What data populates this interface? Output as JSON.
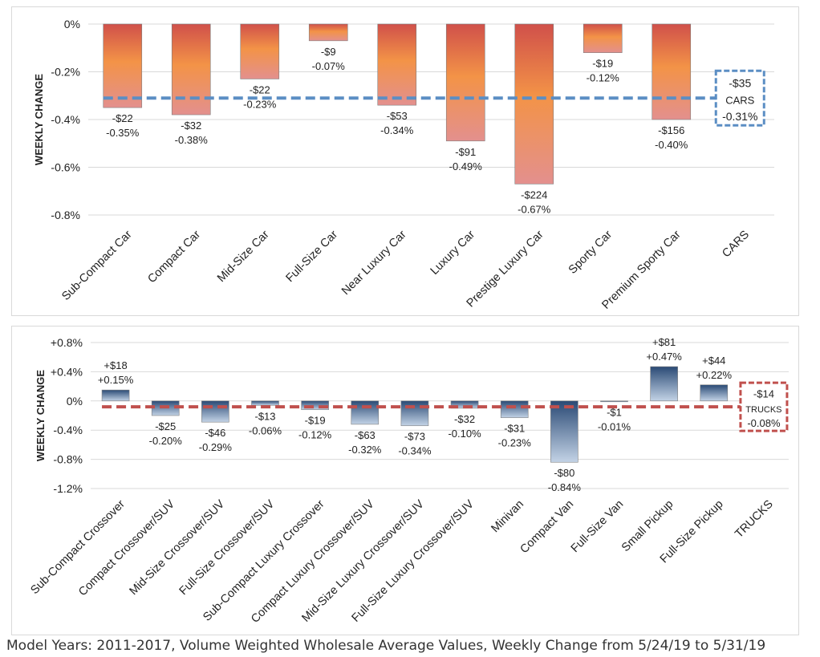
{
  "footnote": "Model Years: 2011-2017, Volume Weighted Wholesale Average Values, Weekly Change from 5/24/19 to 5/31/19",
  "chart_data": [
    {
      "type": "bar",
      "name": "cars",
      "ylabel": "WEEKLY CHANGE",
      "ylim": [
        -0.8,
        0.0
      ],
      "yticks": [
        0,
        -0.2,
        -0.4,
        -0.6,
        -0.8
      ],
      "ytick_labels": [
        "0%",
        "-0.2%",
        "-0.4%",
        "-0.6%",
        "-0.8%"
      ],
      "categories": [
        "Sub-Compact Car",
        "Compact Car",
        "Mid-Size Car",
        "Full-Size Car",
        "Near Luxury Car",
        "Luxury Car",
        "Prestige Luxury Car",
        "Sporty Car",
        "Premium Sporty Car",
        "CARS"
      ],
      "values": [
        -0.35,
        -0.38,
        -0.23,
        -0.07,
        -0.34,
        -0.49,
        -0.67,
        -0.12,
        -0.4,
        null
      ],
      "dollar_labels": [
        "-$22",
        "-$32",
        "-$22",
        "-$9",
        "-$53",
        "-$91",
        "-$224",
        "-$19",
        "-$156"
      ],
      "pct_labels": [
        "-0.35%",
        "-0.38%",
        "-0.23%",
        "-0.07%",
        "-0.34%",
        "-0.49%",
        "-0.67%",
        "-0.12%",
        "-0.40%"
      ],
      "average": {
        "value": -0.31,
        "dollar": "-$35",
        "label": "CARS",
        "pct": "-0.31%",
        "color": "#5b8ec4"
      },
      "bar_colors": {
        "top": "#d0504a",
        "mid": "#f39347",
        "bottom": "#e3908e"
      }
    },
    {
      "type": "bar",
      "name": "trucks",
      "ylabel": "WEEKLY CHANGE",
      "ylim": [
        -1.2,
        0.8
      ],
      "yticks": [
        0.8,
        0.4,
        0,
        -0.4,
        -0.8,
        -1.2
      ],
      "ytick_labels": [
        "+0.8%",
        "+0.4%",
        "0%",
        "-0.4%",
        "-0.8%",
        "-1.2%"
      ],
      "categories": [
        "Sub-Compact Crossover",
        "Compact Crossover/SUV",
        "Mid-Size Crossover/SUV",
        "Full-Size Crossover/SUV",
        "Sub-Compact Luxury Crossover",
        "Compact Luxury Crossover/SUV",
        "Mid-Size Luxury Crossover/SUV",
        "Full-Size Luxury Crossover/SUV",
        "Minivan",
        "Compact Van",
        "Full-Size Van",
        "Small Pickup",
        "Full-Size Pickup",
        "TRUCKS"
      ],
      "values": [
        0.15,
        -0.2,
        -0.29,
        -0.06,
        -0.12,
        -0.32,
        -0.34,
        -0.1,
        -0.23,
        -0.84,
        -0.01,
        0.47,
        0.22,
        null
      ],
      "dollar_labels": [
        "+$18",
        "-$25",
        "-$46",
        "-$13",
        "-$19",
        "-$63",
        "-$73",
        "-$32",
        "-$31",
        "-$80",
        "-$1",
        "+$81",
        "+$44"
      ],
      "pct_labels": [
        "+0.15%",
        "-0.20%",
        "-0.29%",
        "-0.06%",
        "-0.12%",
        "-0.32%",
        "-0.34%",
        "-0.10%",
        "-0.23%",
        "-0.84%",
        "-0.01%",
        "+0.47%",
        "+0.22%"
      ],
      "average": {
        "value": -0.08,
        "dollar": "-$14",
        "label": "TRUCKS",
        "pct": "-0.08%",
        "color": "#c0504d"
      },
      "bar_colors": {
        "top": "#2a4a75",
        "bottom": "#c3d3e6"
      }
    }
  ]
}
